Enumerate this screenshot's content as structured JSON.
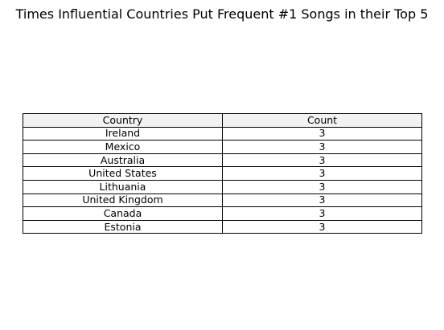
{
  "chart_data": {
    "type": "table",
    "title": "Times Influential Countries Put Frequent #1 Songs in their Top 5",
    "columns": [
      "Country",
      "Count"
    ],
    "rows": [
      [
        "Ireland",
        "3"
      ],
      [
        "Mexico",
        "3"
      ],
      [
        "Australia",
        "3"
      ],
      [
        "United States",
        "3"
      ],
      [
        "Lithuania",
        "3"
      ],
      [
        "United Kingdom",
        "3"
      ],
      [
        "Canada",
        "3"
      ],
      [
        "Estonia",
        "3"
      ]
    ],
    "header_background": "#f2f2f2"
  }
}
